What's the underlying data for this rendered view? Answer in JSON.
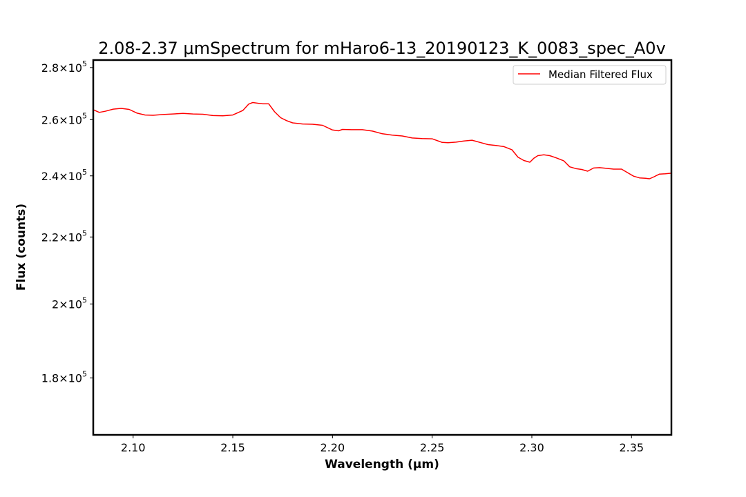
{
  "chart_data": {
    "type": "line",
    "title": "2.08-2.37 μmSpectrum for mHaro6-13_20190123_K_0083_spec_A0v",
    "xlabel": "Wavelength (μm)",
    "ylabel": "Flux (counts)",
    "xlim": [
      2.08,
      2.37
    ],
    "ylim": [
      166000,
      283000
    ],
    "yscale": "log",
    "grid": false,
    "legend_position": "top-right",
    "x_ticks": [
      {
        "value": 2.1,
        "label": "2.10"
      },
      {
        "value": 2.15,
        "label": "2.15"
      },
      {
        "value": 2.2,
        "label": "2.20"
      },
      {
        "value": 2.25,
        "label": "2.25"
      },
      {
        "value": 2.3,
        "label": "2.30"
      },
      {
        "value": 2.35,
        "label": "2.35"
      }
    ],
    "y_ticks": [
      {
        "value": 180000,
        "mantissa": "1.8",
        "base": "10",
        "exponent": "5"
      },
      {
        "value": 200000,
        "mantissa": "2",
        "base": "10",
        "exponent": "5"
      },
      {
        "value": 220000,
        "mantissa": "2.2",
        "base": "10",
        "exponent": "5"
      },
      {
        "value": 240000,
        "mantissa": "2.4",
        "base": "10",
        "exponent": "5"
      },
      {
        "value": 260000,
        "mantissa": "2.6",
        "base": "10",
        "exponent": "5"
      },
      {
        "value": 280000,
        "mantissa": "2.8",
        "base": "10",
        "exponent": "5"
      }
    ],
    "series": [
      {
        "name": "Median Filtered Flux",
        "color": "#ff0000",
        "x": [
          2.08,
          2.083,
          2.086,
          2.09,
          2.094,
          2.098,
          2.102,
          2.106,
          2.11,
          2.115,
          2.12,
          2.125,
          2.13,
          2.135,
          2.14,
          2.145,
          2.15,
          2.155,
          2.158,
          2.16,
          2.163,
          2.165,
          2.168,
          2.171,
          2.174,
          2.177,
          2.18,
          2.185,
          2.19,
          2.195,
          2.2,
          2.203,
          2.205,
          2.21,
          2.215,
          2.22,
          2.225,
          2.23,
          2.235,
          2.24,
          2.245,
          2.25,
          2.255,
          2.258,
          2.262,
          2.266,
          2.27,
          2.274,
          2.278,
          2.282,
          2.286,
          2.29,
          2.293,
          2.296,
          2.299,
          2.301,
          2.303,
          2.306,
          2.309,
          2.312,
          2.316,
          2.319,
          2.322,
          2.325,
          2.328,
          2.331,
          2.334,
          2.337,
          2.341,
          2.345,
          2.348,
          2.351,
          2.354,
          2.357,
          2.359,
          2.361,
          2.364,
          2.367,
          2.37
        ],
        "y": [
          263700,
          262700,
          263100,
          263900,
          264200,
          263800,
          262400,
          261700,
          261600,
          261900,
          262100,
          262300,
          262100,
          262000,
          261500,
          261400,
          261700,
          263400,
          265800,
          266400,
          266100,
          265900,
          265900,
          262900,
          260700,
          259600,
          258800,
          258400,
          258300,
          257900,
          256200,
          255900,
          256400,
          256300,
          256300,
          255800,
          254800,
          254300,
          254000,
          253300,
          253100,
          253000,
          251700,
          251600,
          251800,
          252200,
          252500,
          251700,
          250900,
          250600,
          250200,
          249100,
          246500,
          245300,
          244700,
          246100,
          247000,
          247300,
          247000,
          246300,
          245200,
          243100,
          242500,
          242200,
          241600,
          242700,
          242800,
          242600,
          242300,
          242300,
          241100,
          239900,
          239300,
          239200,
          239000,
          239600,
          240600,
          240700,
          240900
        ]
      }
    ]
  }
}
